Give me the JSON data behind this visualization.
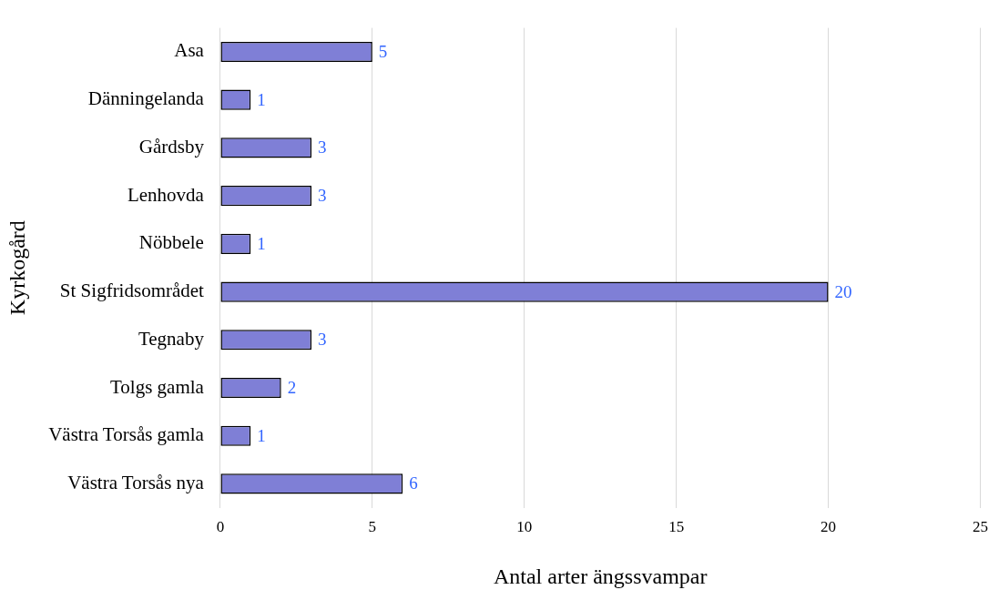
{
  "chart_data": {
    "type": "bar",
    "orientation": "horizontal",
    "xlabel": "Antal arter ängssvampar",
    "ylabel": "Kyrkogård",
    "categories": [
      "Asa",
      "Dänningelanda",
      "Gårdsby",
      "Lenhovda",
      "Nöbbele",
      "St Sigfridsområdet",
      "Tegnaby",
      "Tolgs gamla",
      "Västra Torsås gamla",
      "Västra Torsås nya"
    ],
    "values": [
      5,
      1,
      3,
      3,
      1,
      20,
      3,
      2,
      1,
      6
    ],
    "color": "#7f7fd6",
    "xlim": [
      0,
      25
    ],
    "xticks": [
      0,
      5,
      10,
      15,
      20,
      25
    ],
    "grid": "x",
    "data_labels": true,
    "legend": false
  }
}
